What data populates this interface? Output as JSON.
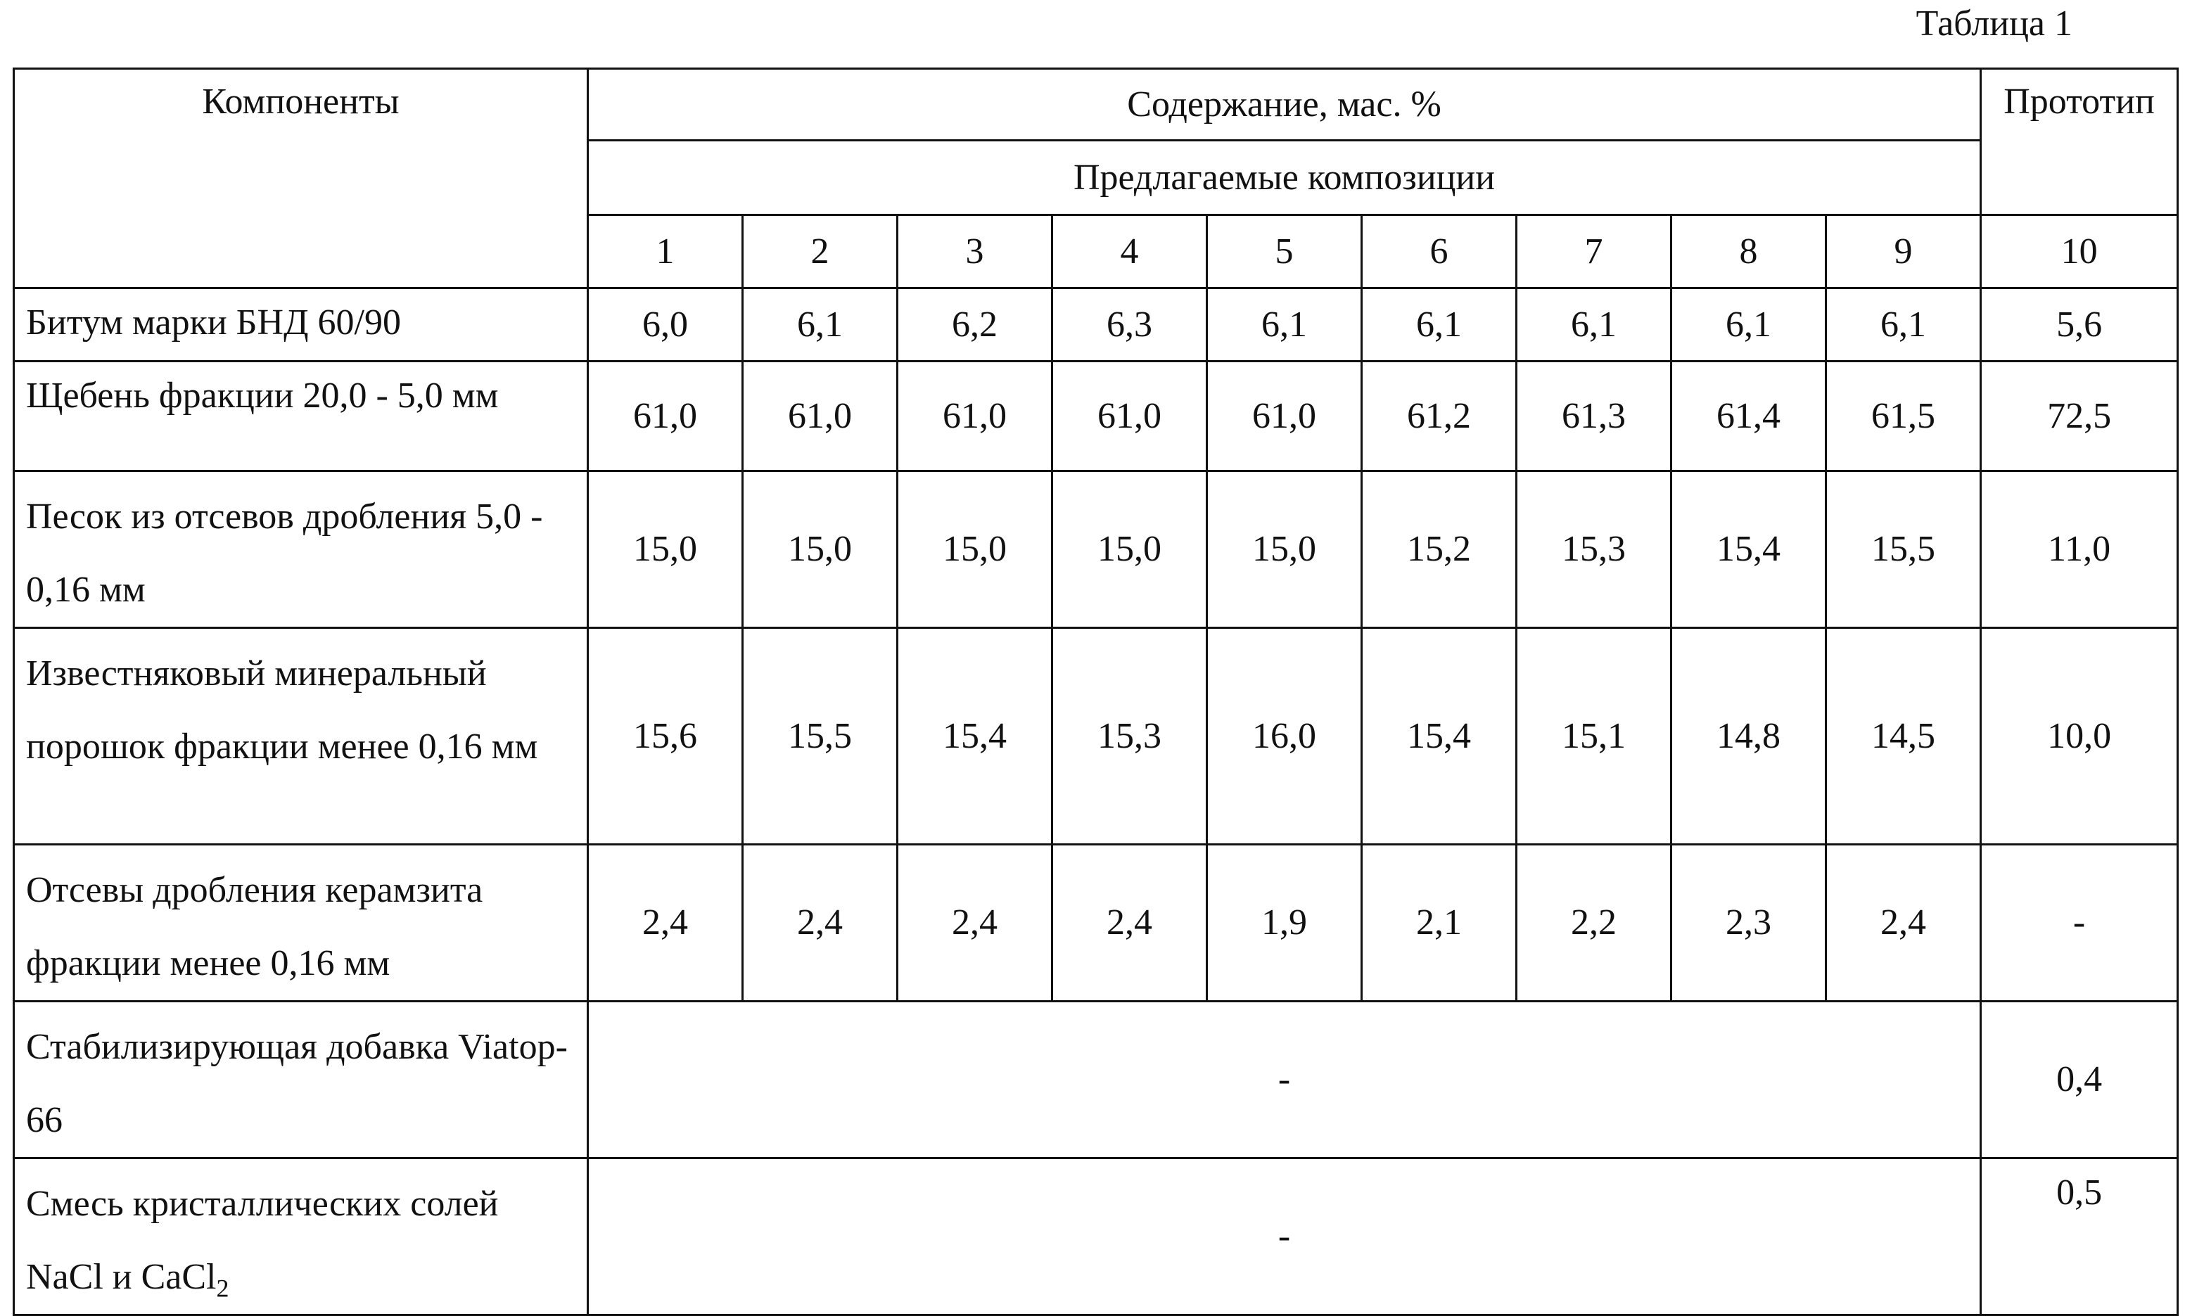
{
  "table_caption": "Таблица 1",
  "headers": {
    "components": "Компоненты",
    "content": "Содержание, мас. %",
    "proposed": "Предлагаемые композиции",
    "prototype": "Прототип",
    "numbers": [
      "1",
      "2",
      "3",
      "4",
      "5",
      "6",
      "7",
      "8",
      "9",
      "10"
    ]
  },
  "rows": [
    {
      "name": "Битум марки БНД 60/90",
      "values": [
        "6,0",
        "6,1",
        "6,2",
        "6,3",
        "6,1",
        "6,1",
        "6,1",
        "6,1",
        "6,1"
      ],
      "prototype": "5,6"
    },
    {
      "name": "Щебень фракции 20,0 - 5,0 мм",
      "values": [
        "61,0",
        "61,0",
        "61,0",
        "61,0",
        "61,0",
        "61,2",
        "61,3",
        "61,4",
        "61,5"
      ],
      "prototype": "72,5"
    },
    {
      "name": "Песок из отсевов дробления 5,0 - 0,16 мм",
      "values": [
        "15,0",
        "15,0",
        "15,0",
        "15,0",
        "15,0",
        "15,2",
        "15,3",
        "15,4",
        "15,5"
      ],
      "prototype": "11,0"
    },
    {
      "name": "Известняковый минеральный порошок фракции менее 0,16 мм",
      "values": [
        "15,6",
        "15,5",
        "15,4",
        "15,3",
        "16,0",
        "15,4",
        "15,1",
        "14,8",
        "14,5"
      ],
      "prototype": "10,0"
    },
    {
      "name": "Отсевы дробления керамзита фракции менее 0,16 мм",
      "values": [
        "2,4",
        "2,4",
        "2,4",
        "2,4",
        "1,9",
        "2,1",
        "2,2",
        "2,3",
        "2,4"
      ],
      "prototype": "-"
    },
    {
      "name": "Стабилизирующая добавка Viatop-66",
      "merged_value": "-",
      "prototype": "0,4"
    },
    {
      "name_main": "Смесь кристаллических солей NaCl и CaCl",
      "name_subscript": "2",
      "merged_value": "-",
      "prototype": "0,5"
    }
  ]
}
